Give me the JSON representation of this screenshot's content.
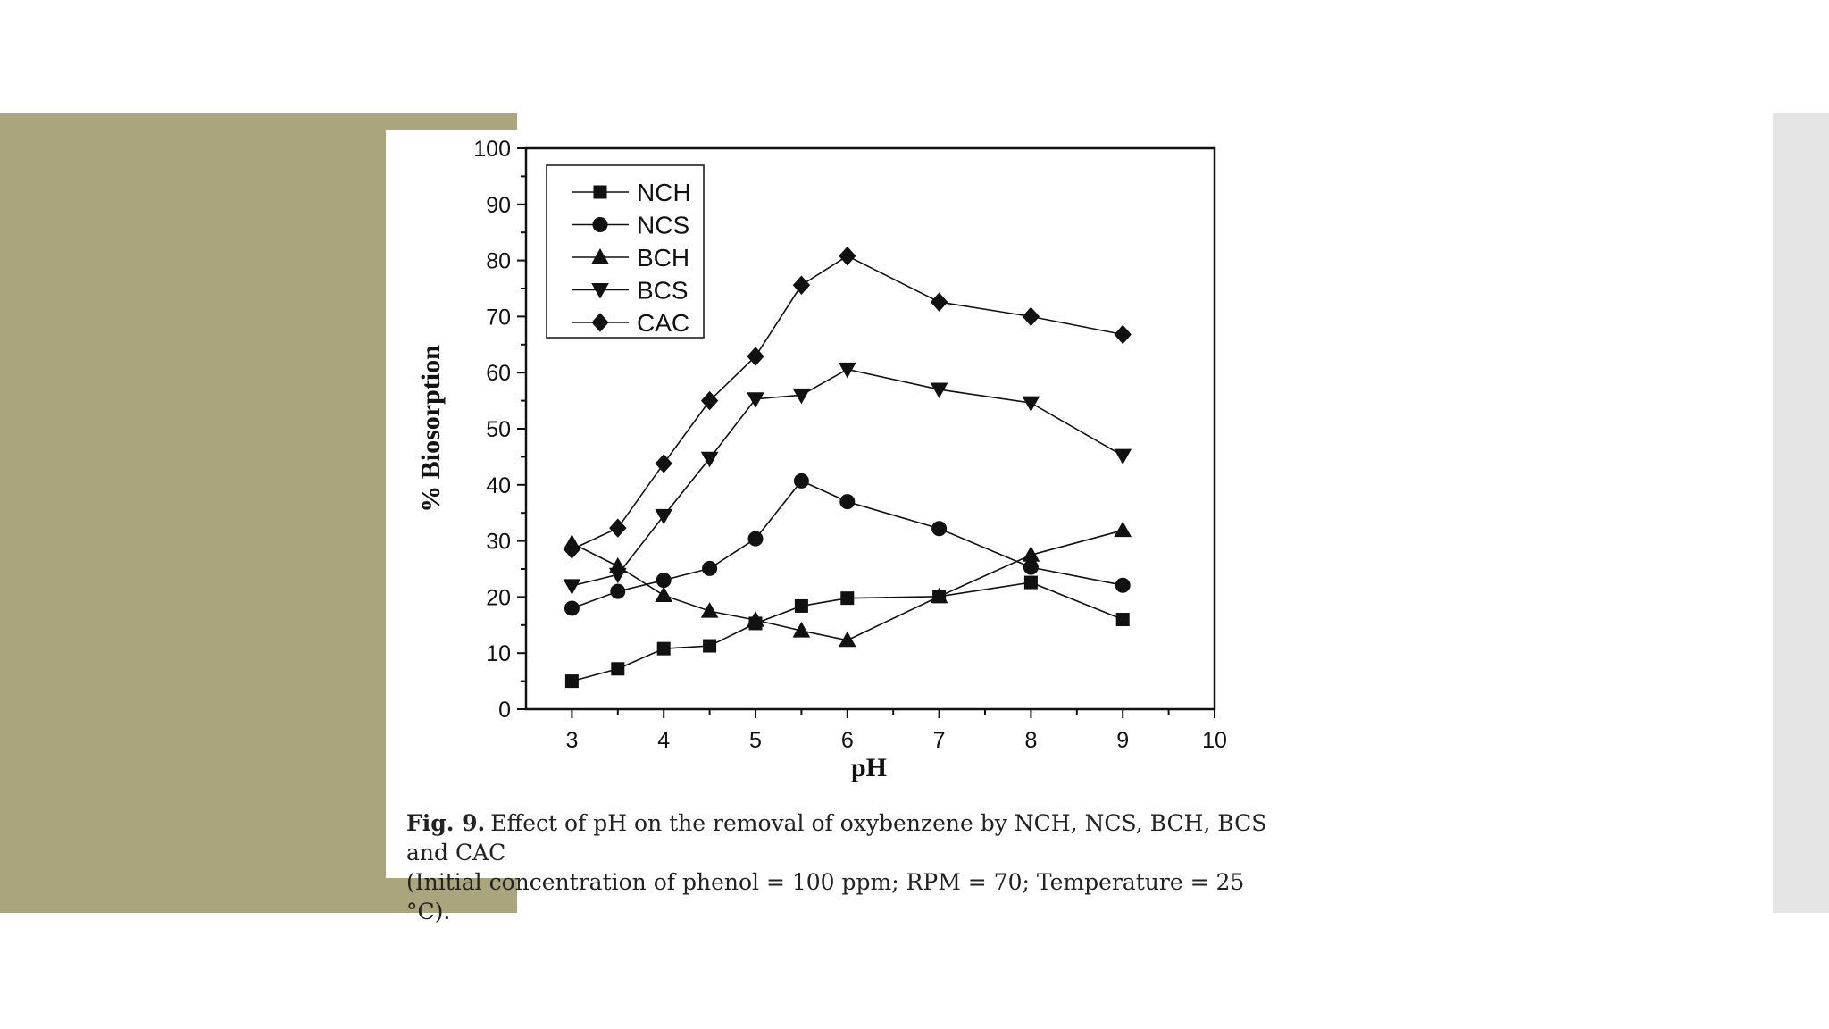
{
  "colors": {
    "accent": "#aaa57c",
    "right_strip": "#e5e5e5",
    "background": "#ffffff",
    "ink": "#111111"
  },
  "figure": {
    "caption_label": "Fig. 9.",
    "caption_line1": "Effect of pH on the removal of oxybenzene by NCH, NCS, BCH, BCS and CAC",
    "caption_line2": "(Initial concentration of phenol = 100 ppm; RPM = 70; Temperature = 25 °C)."
  },
  "chart_data": {
    "type": "line",
    "title": "",
    "xlabel": "pH",
    "ylabel": "% Biosorption",
    "xlim": [
      2.5,
      10
    ],
    "ylim": [
      0,
      100
    ],
    "x_ticks": [
      3,
      4,
      5,
      6,
      7,
      8,
      9,
      10
    ],
    "y_ticks": [
      0,
      10,
      20,
      30,
      40,
      50,
      60,
      70,
      80,
      90,
      100
    ],
    "legend_position": "top-left",
    "grid": false,
    "series": [
      {
        "name": "NCH",
        "marker": "square",
        "x": [
          3,
          3.5,
          4,
          4.5,
          5,
          5.5,
          6,
          7,
          8,
          9
        ],
        "y": [
          5,
          7.2,
          10.8,
          11.3,
          15.3,
          18.4,
          19.8,
          20.1,
          22.6,
          16
        ]
      },
      {
        "name": "NCS",
        "marker": "circle",
        "x": [
          3,
          3.5,
          4,
          4.5,
          5,
          5.5,
          6,
          7,
          8,
          9
        ],
        "y": [
          18,
          21,
          23,
          25.1,
          30.4,
          40.7,
          37,
          32.2,
          25.3,
          22.1
        ]
      },
      {
        "name": "BCH",
        "marker": "triangle-up",
        "x": [
          3,
          3.5,
          4,
          4.5,
          5,
          5.5,
          6,
          7,
          8,
          9
        ],
        "y": [
          29.6,
          25.5,
          20.3,
          17.5,
          15.9,
          14,
          12.3,
          20.1,
          27.5,
          31.9
        ]
      },
      {
        "name": "BCS",
        "marker": "triangle-down",
        "x": [
          3,
          3.5,
          4,
          4.5,
          5,
          5.5,
          6,
          7,
          8,
          9
        ],
        "y": [
          22,
          24,
          34.5,
          44.7,
          55.3,
          56,
          60.6,
          57,
          54.6,
          45.2
        ]
      },
      {
        "name": "CAC",
        "marker": "diamond",
        "x": [
          3,
          3.5,
          4,
          4.5,
          5,
          5.5,
          6,
          7,
          8,
          9
        ],
        "y": [
          28.5,
          32.3,
          43.8,
          55,
          62.9,
          75.6,
          80.8,
          72.6,
          70,
          66.8
        ]
      }
    ]
  }
}
